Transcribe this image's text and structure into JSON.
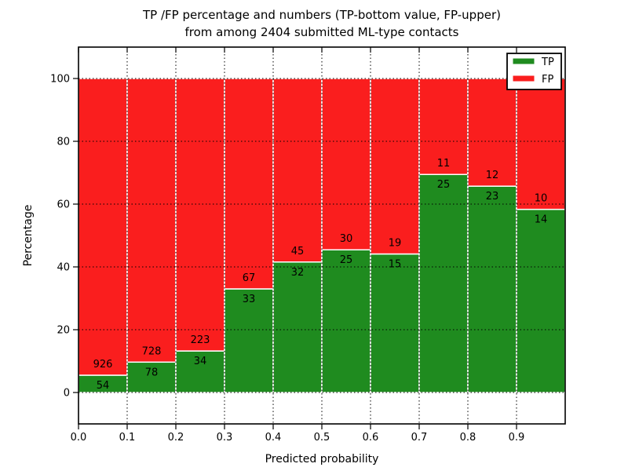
{
  "chart_data": {
    "type": "bar",
    "stacked": true,
    "normalization": "each bin stacked to 100 percent",
    "title_line1": "TP /FP percentage and numbers (TP-bottom value, FP-upper)",
    "title_line2": "from among 2404 submitted ML-type contacts",
    "xlabel": "Predicted probability",
    "ylabel": "Percentage",
    "total_contacts": 2404,
    "bins": {
      "starts": [
        0.0,
        0.1,
        0.2,
        0.3,
        0.4,
        0.5,
        0.6,
        0.7,
        0.8,
        0.9
      ],
      "width": 0.1
    },
    "x_tick_labels": [
      "0.0",
      "0.1",
      "0.2",
      "0.3",
      "0.4",
      "0.5",
      "0.6",
      "0.7",
      "0.8",
      "0.9"
    ],
    "y_tick_values": [
      0,
      20,
      40,
      60,
      80,
      100
    ],
    "xlim": [
      0.0,
      1.0
    ],
    "ylim": [
      -10,
      110
    ],
    "grid": "dotted black, above bars",
    "bar_edge_color": "#ffffff",
    "series": [
      {
        "name": "TP",
        "color": "#1f8b1f",
        "counts": [
          54,
          78,
          34,
          33,
          32,
          25,
          15,
          25,
          23,
          14
        ],
        "percent": [
          5.51,
          9.68,
          13.23,
          33.0,
          41.56,
          45.45,
          44.12,
          69.44,
          65.71,
          58.33
        ]
      },
      {
        "name": "FP",
        "color": "#fa1e1e",
        "counts": [
          926,
          728,
          223,
          67,
          45,
          30,
          19,
          11,
          12,
          10
        ],
        "percent": [
          94.49,
          90.32,
          86.77,
          67.0,
          58.44,
          54.55,
          55.88,
          30.56,
          34.29,
          41.67
        ]
      }
    ],
    "legend": {
      "position": "upper-right",
      "entries": [
        {
          "label": "TP",
          "color": "#1f8b1f"
        },
        {
          "label": "FP",
          "color": "#fa1e1e"
        }
      ]
    }
  }
}
